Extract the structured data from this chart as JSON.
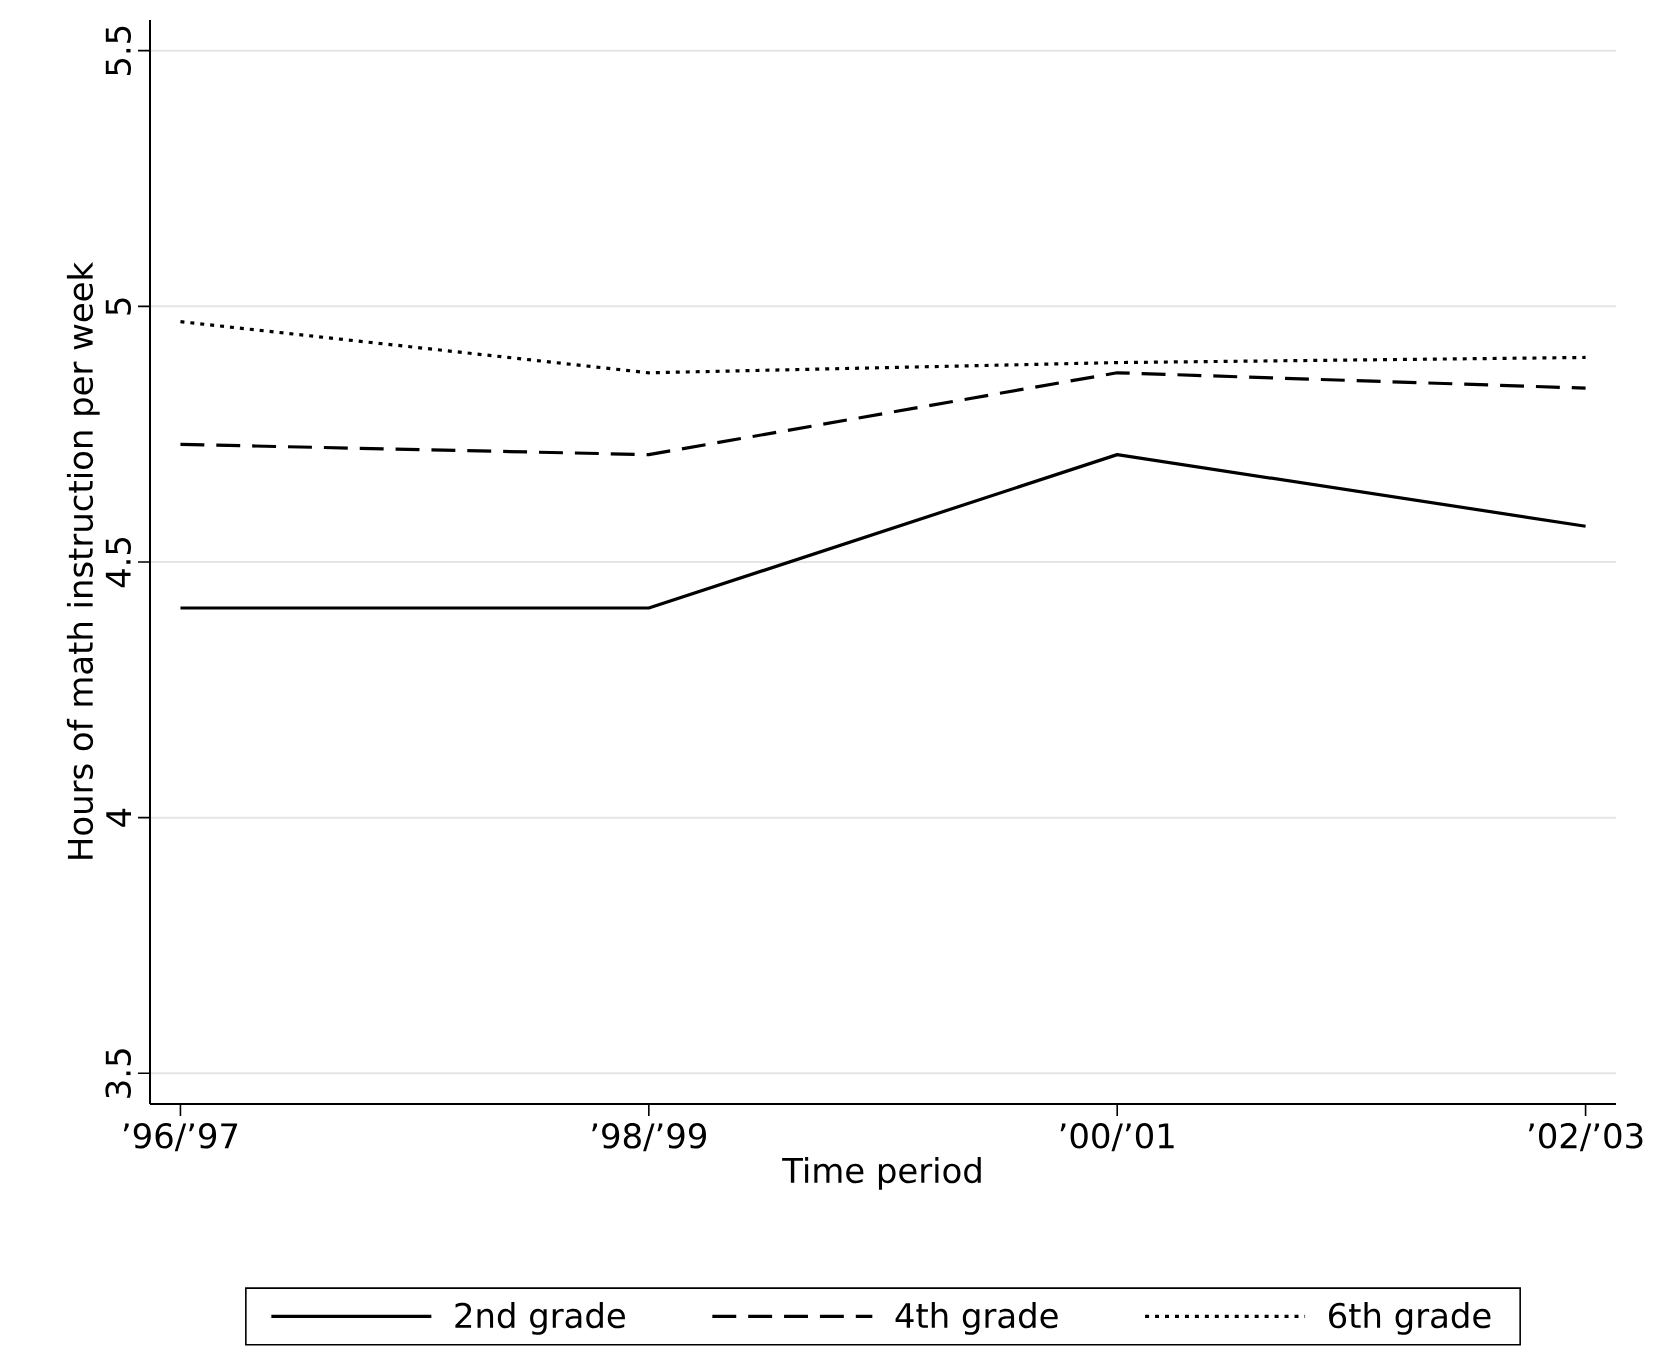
{
  "chart_data": {
    "type": "line",
    "xlabel": "Time period",
    "ylabel": "Hours of math instruction per week",
    "categories": [
      "’96/’97",
      "’98/’99",
      "’00/’01",
      "’02/’03"
    ],
    "series": [
      {
        "name": "2nd grade",
        "color": "#000000",
        "line_style": "solid",
        "values": [
          4.41,
          4.41,
          4.71,
          4.57
        ]
      },
      {
        "name": "4th grade",
        "color": "#000000",
        "line_style": "dashed",
        "values": [
          4.73,
          4.71,
          4.87,
          4.84
        ]
      },
      {
        "name": "6th grade",
        "color": "#000000",
        "line_style": "dotted",
        "values": [
          4.97,
          4.87,
          4.89,
          4.9
        ]
      }
    ],
    "ylim": [
      3.44,
      5.56
    ],
    "yticks": [
      3.5,
      4,
      4.5,
      5,
      5.5
    ],
    "grid": "y",
    "legend": "bottom",
    "marker": "none"
  }
}
